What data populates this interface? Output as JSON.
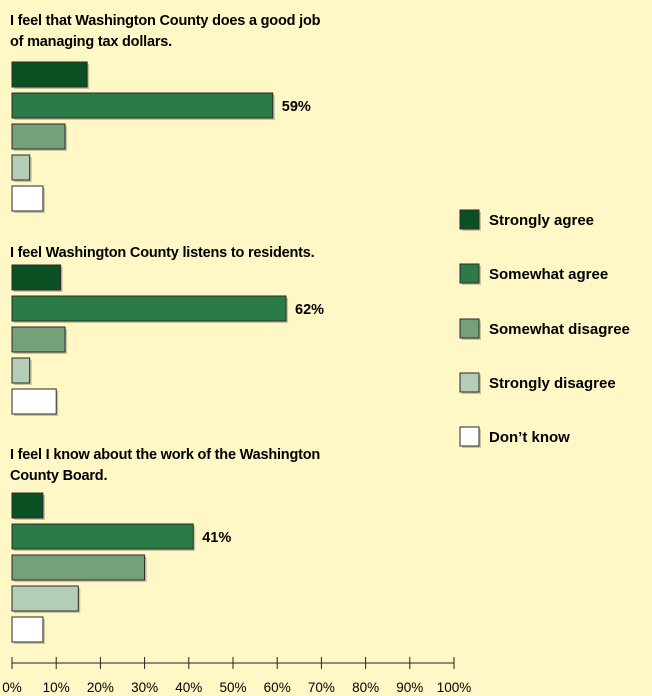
{
  "colors": {
    "background": "#fff7c6",
    "strongly_agree": "#0c5124",
    "somewhat_agree": "#2a7b45",
    "somewhat_disagree": "#74a07a",
    "strongly_disagree": "#b3cdb6",
    "dont_know": "#ffffff"
  },
  "chart_data": {
    "type": "bar",
    "orientation": "horizontal",
    "xlim": [
      0,
      100
    ],
    "x_ticks": [
      "0%",
      "10%",
      "20%",
      "30%",
      "40%",
      "50%",
      "60%",
      "70%",
      "80%",
      "90%",
      "100%"
    ],
    "legend": {
      "placement": "right",
      "entries": [
        "Strongly agree",
        "Somewhat agree",
        "Somewhat disagree",
        "Strongly disagree",
        "Don’t know"
      ]
    },
    "groups": [
      {
        "title_lines": [
          "I feel that Washington County does a good job",
          "of managing tax dollars."
        ],
        "values": [
          17,
          59,
          12,
          4,
          7
        ],
        "labels": [
          "",
          "59%",
          "",
          "",
          ""
        ]
      },
      {
        "title_lines": [
          "I feel Washington County listens to residents."
        ],
        "values": [
          11,
          62,
          12,
          4,
          10
        ],
        "labels": [
          "",
          "62%",
          "",
          "",
          ""
        ]
      },
      {
        "title_lines": [
          "I feel I know about the work of the Washington",
          "County Board."
        ],
        "values": [
          7,
          41,
          30,
          15,
          7
        ],
        "labels": [
          "",
          "41%",
          "",
          "",
          ""
        ]
      }
    ]
  }
}
